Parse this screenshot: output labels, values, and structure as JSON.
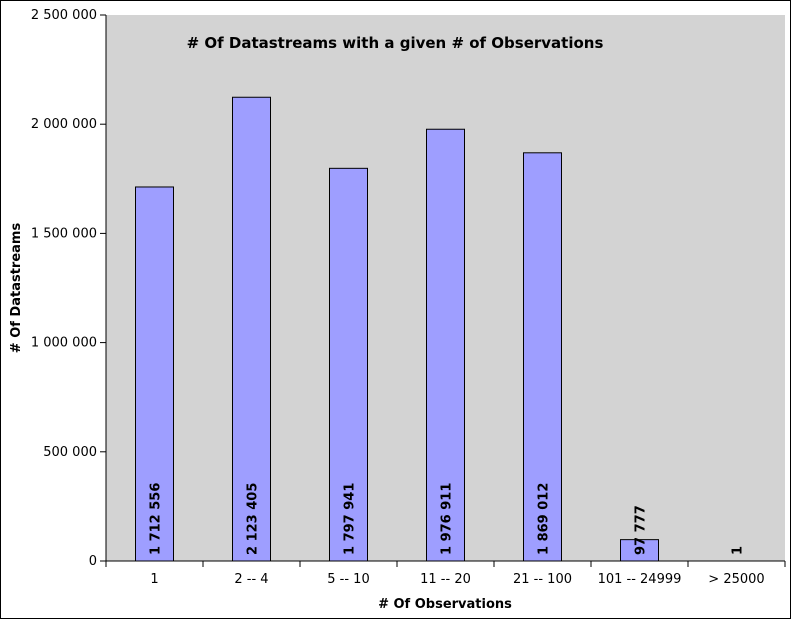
{
  "chart_data": {
    "type": "bar",
    "title": "# Of Datastreams with a given # of Observations",
    "xlabel": "# Of Observations",
    "ylabel": "# Of Datastreams",
    "categories": [
      "1",
      "2 -- 4",
      "5 -- 10",
      "11 -- 20",
      "21 -- 100",
      "101 -- 24999",
      "> 25000"
    ],
    "values": [
      1712556,
      2123405,
      1797941,
      1976911,
      1869012,
      97777,
      1
    ],
    "data_labels": [
      "1 712 556",
      "2 123 405",
      "1 797 941",
      "1 976 911",
      "1 869 012",
      "97 777",
      "1"
    ],
    "yticks": [
      0,
      500000,
      1000000,
      1500000,
      2000000,
      2500000
    ],
    "ytick_labels": [
      "0",
      "500 000",
      "1 000 000",
      "1 500 000",
      "2 000 000",
      "2 500 000"
    ],
    "ylim": [
      0,
      2500000
    ],
    "grid": false,
    "legend": "none",
    "colors": {
      "plot_background": "#d3d3d3",
      "bar_fill": "#9e9eff",
      "bar_stroke": "#000000"
    }
  }
}
